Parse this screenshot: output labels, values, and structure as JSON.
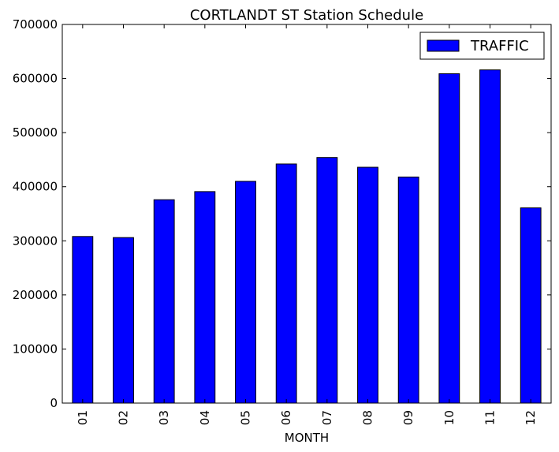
{
  "chart_data": {
    "type": "bar",
    "title": "CORTLANDT ST Station Schedule",
    "xlabel": "MONTH",
    "ylabel": "",
    "categories": [
      "01",
      "02",
      "03",
      "04",
      "05",
      "06",
      "07",
      "08",
      "09",
      "10",
      "11",
      "12"
    ],
    "series": [
      {
        "name": "TRAFFIC",
        "color": "#0000ff",
        "values": [
          308000,
          306000,
          376000,
          391000,
          410000,
          442000,
          454000,
          436000,
          418000,
          609000,
          616000,
          361000
        ]
      }
    ],
    "ylim": [
      0,
      700000
    ],
    "yticks": [
      "0",
      "100000",
      "200000",
      "300000",
      "400000",
      "500000",
      "600000",
      "700000"
    ],
    "grid": false,
    "legend_position": "top-right"
  }
}
